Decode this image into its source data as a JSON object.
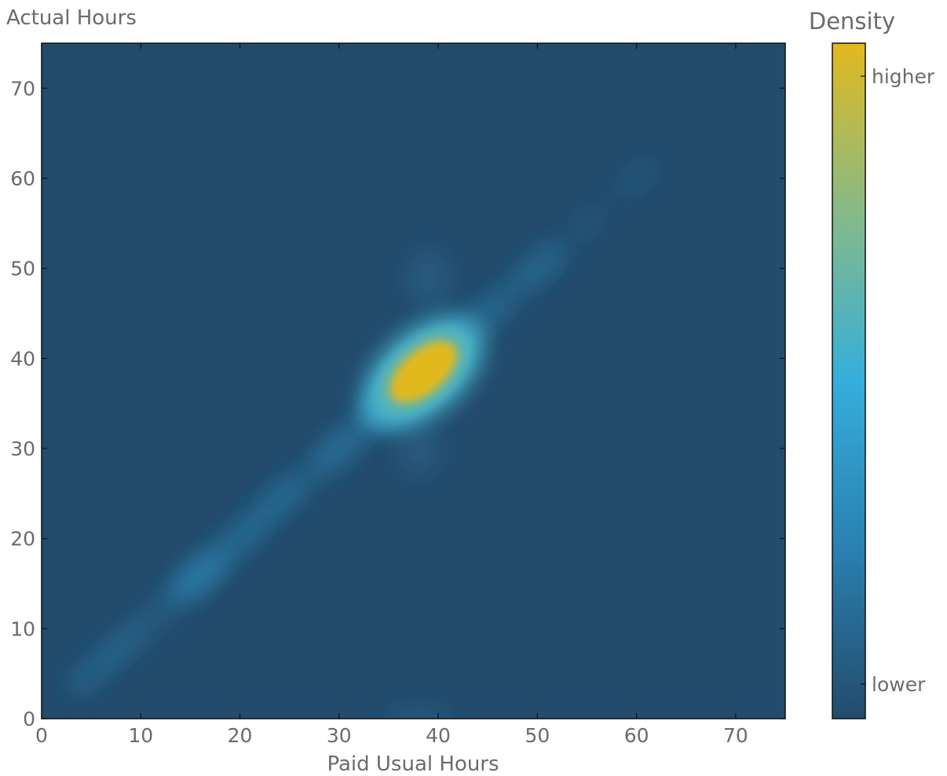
{
  "chart_data": {
    "type": "heatmap",
    "title": "",
    "xlabel": "Paid Usual Hours",
    "ylabel": "Actual Hours",
    "xlim": [
      0,
      75
    ],
    "ylim": [
      0,
      75
    ],
    "x_ticks": [
      0,
      10,
      20,
      30,
      40,
      50,
      60,
      70
    ],
    "y_ticks": [
      0,
      10,
      20,
      30,
      40,
      50,
      60,
      70
    ],
    "x_tick_labels": [
      "0",
      "10",
      "20",
      "30",
      "40",
      "50",
      "60",
      "70"
    ],
    "y_tick_labels": [
      "0",
      "10",
      "20",
      "30",
      "40",
      "50",
      "60",
      "70"
    ],
    "grid": false,
    "colorbar": {
      "title": "Density",
      "high_label": "higher",
      "low_label": "lower",
      "colors": [
        "#224b6c",
        "#2a80b0",
        "#35aedc",
        "#86ba88",
        "#e2b91e"
      ],
      "background": "#224b6c"
    },
    "density_peaks": [
      {
        "x": 38.5,
        "y": 38.5,
        "intensity": 1.0
      },
      {
        "x": 36.5,
        "y": 36.5,
        "intensity": 0.6
      },
      {
        "x": 16,
        "y": 16,
        "intensity": 0.3
      },
      {
        "x": 30,
        "y": 30,
        "intensity": 0.22
      },
      {
        "x": 24,
        "y": 24.5,
        "intensity": 0.18
      },
      {
        "x": 20.5,
        "y": 20.5,
        "intensity": 0.18
      },
      {
        "x": 45,
        "y": 45,
        "intensity": 0.16
      },
      {
        "x": 50,
        "y": 50,
        "intensity": 0.15
      },
      {
        "x": 39,
        "y": 49,
        "intensity": 0.1
      },
      {
        "x": 38,
        "y": 30,
        "intensity": 0.09
      },
      {
        "x": 38,
        "y": 0,
        "intensity": 0.12
      },
      {
        "x": 60,
        "y": 60,
        "intensity": 0.08
      },
      {
        "x": 8,
        "y": 8,
        "intensity": 0.12
      },
      {
        "x": 5,
        "y": 5,
        "intensity": 0.08
      },
      {
        "x": 55,
        "y": 55,
        "intensity": 0.05
      }
    ]
  }
}
